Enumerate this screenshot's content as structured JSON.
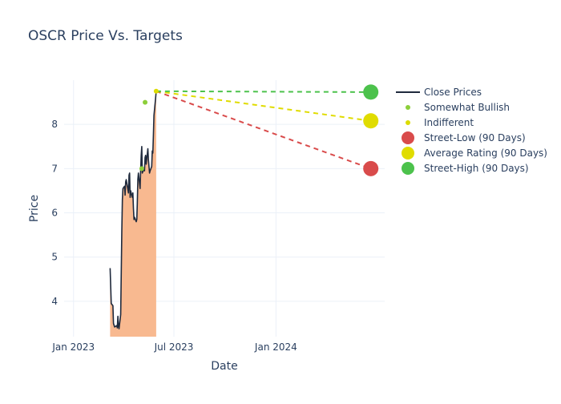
{
  "chart_data": {
    "type": "line",
    "title": "OSCR Price Vs. Targets",
    "xlabel": "Date",
    "ylabel": "Price",
    "x_ticks": [
      {
        "label": "Jan 2023",
        "date": "2023-01-01"
      },
      {
        "label": "Jul 2023",
        "date": "2023-07-01"
      },
      {
        "label": "Jan 2024",
        "date": "2024-01-01"
      }
    ],
    "y_ticks": [
      4,
      5,
      6,
      7,
      8
    ],
    "xlim": [
      "2022-12-15",
      "2024-07-15"
    ],
    "ylim": [
      3.2,
      9.0
    ],
    "close_prices": {
      "name": "Close Prices",
      "color": "#1f2a3d",
      "fill_color": "#f8b58a",
      "points": [
        [
          "2023-03-08",
          4.75
        ],
        [
          "2023-03-10",
          3.95
        ],
        [
          "2023-03-13",
          3.9
        ],
        [
          "2023-03-14",
          3.5
        ],
        [
          "2023-03-16",
          3.42
        ],
        [
          "2023-03-20",
          3.45
        ],
        [
          "2023-03-21",
          3.4
        ],
        [
          "2023-03-22",
          3.66
        ],
        [
          "2023-03-23",
          3.45
        ],
        [
          "2023-03-24",
          3.38
        ],
        [
          "2023-03-27",
          3.7
        ],
        [
          "2023-03-29",
          5.6
        ],
        [
          "2023-03-30",
          6.3
        ],
        [
          "2023-03-31",
          6.55
        ],
        [
          "2023-04-03",
          6.6
        ],
        [
          "2023-04-04",
          6.4
        ],
        [
          "2023-04-05",
          6.7
        ],
        [
          "2023-04-06",
          6.75
        ],
        [
          "2023-04-10",
          6.45
        ],
        [
          "2023-04-11",
          6.85
        ],
        [
          "2023-04-12",
          6.9
        ],
        [
          "2023-04-13",
          6.35
        ],
        [
          "2023-04-14",
          6.5
        ],
        [
          "2023-04-17",
          6.35
        ],
        [
          "2023-04-18",
          6.45
        ],
        [
          "2023-04-19",
          6.1
        ],
        [
          "2023-04-20",
          5.85
        ],
        [
          "2023-04-21",
          5.9
        ],
        [
          "2023-04-24",
          5.8
        ],
        [
          "2023-04-25",
          5.85
        ],
        [
          "2023-04-26",
          6.2
        ],
        [
          "2023-04-27",
          6.75
        ],
        [
          "2023-04-28",
          6.9
        ],
        [
          "2023-05-01",
          6.55
        ],
        [
          "2023-05-02",
          6.95
        ],
        [
          "2023-05-03",
          7.3
        ],
        [
          "2023-05-04",
          7.5
        ],
        [
          "2023-05-05",
          6.9
        ],
        [
          "2023-05-08",
          7.0
        ],
        [
          "2023-05-09",
          6.95
        ],
        [
          "2023-05-10",
          7.25
        ],
        [
          "2023-05-11",
          7.3
        ],
        [
          "2023-05-12",
          7.1
        ],
        [
          "2023-05-15",
          7.45
        ],
        [
          "2023-05-16",
          7.2
        ],
        [
          "2023-05-17",
          7.05
        ],
        [
          "2023-05-18",
          6.9
        ],
        [
          "2023-05-19",
          6.95
        ],
        [
          "2023-05-22",
          7.05
        ],
        [
          "2023-05-23",
          7.4
        ],
        [
          "2023-05-24",
          7.35
        ],
        [
          "2023-05-25",
          7.75
        ],
        [
          "2023-05-26",
          8.2
        ],
        [
          "2023-05-29",
          8.6
        ],
        [
          "2023-05-30",
          8.75
        ]
      ]
    },
    "analyst_ratings": [
      {
        "name": "Somewhat Bullish",
        "color": "#8ccf3a",
        "points": [
          [
            "2023-05-04",
            7.0
          ],
          [
            "2023-05-10",
            8.5
          ]
        ]
      },
      {
        "name": "Indifferent",
        "color": "#dcdc00",
        "points": [
          [
            "2023-05-30",
            8.75
          ]
        ]
      }
    ],
    "targets": {
      "start_date": "2023-05-30",
      "start_price": 8.75,
      "end_date": "2024-06-20",
      "series": [
        {
          "name": "Street-Low (90 Days)",
          "value": 7.0,
          "color": "#d94b4b"
        },
        {
          "name": "Average Rating (90 Days)",
          "value": 8.08,
          "color": "#e0dc00"
        },
        {
          "name": "Street-High (90 Days)",
          "value": 8.73,
          "color": "#4cc24c"
        }
      ]
    },
    "legend": {
      "position": "right",
      "entries": [
        "Close Prices",
        "Somewhat Bullish",
        "Indifferent",
        "Street-Low (90 Days)",
        "Average Rating (90 Days)",
        "Street-High (90 Days)"
      ]
    },
    "grid": true
  }
}
